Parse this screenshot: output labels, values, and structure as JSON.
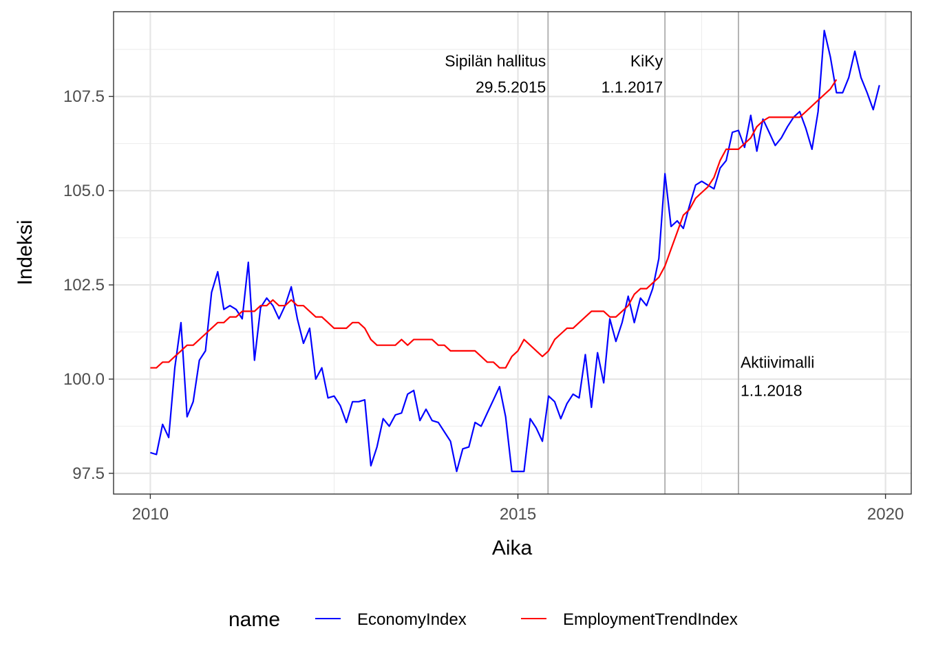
{
  "chart_data": {
    "type": "line",
    "xlabel": "Aika",
    "ylabel": "Indeksi",
    "xlim": [
      2009.5,
      2020.35
    ],
    "ylim": [
      96.95,
      109.75
    ],
    "xticks": [
      {
        "value": 2010,
        "label": "2010"
      },
      {
        "value": 2015,
        "label": "2015"
      },
      {
        "value": 2020,
        "label": "2020"
      }
    ],
    "yticks": [
      {
        "value": 97.5,
        "label": "97.5"
      },
      {
        "value": 100.0,
        "label": "100.0"
      },
      {
        "value": 102.5,
        "label": "102.5"
      },
      {
        "value": 105.0,
        "label": "105.0"
      },
      {
        "value": 107.5,
        "label": "107.5"
      }
    ],
    "grid": true,
    "legend_position": "bottom",
    "legend_title": "name",
    "vlines": [
      {
        "x": 2015.41,
        "label_line1": "Sipilän hallitus",
        "label_line2": "29.5.2015",
        "label_anchor": "end",
        "label_y1": 108.3,
        "label_y2": 107.6
      },
      {
        "x": 2017.0,
        "label_line1": "KiKy",
        "label_line2": "1.1.2017",
        "label_anchor": "end",
        "label_y1": 108.3,
        "label_y2": 107.6
      },
      {
        "x": 2018.0,
        "label_line1": "Aktiivimalli",
        "label_line2": "1.1.2018",
        "label_anchor": "start",
        "label_y1": 100.3,
        "label_y2": 99.55
      }
    ],
    "series": [
      {
        "name": "EconomyIndex",
        "color": "#0000ff",
        "x": [
          2010.0,
          2010.083,
          2010.167,
          2010.25,
          2010.333,
          2010.417,
          2010.5,
          2010.583,
          2010.667,
          2010.75,
          2010.833,
          2010.917,
          2011.0,
          2011.083,
          2011.167,
          2011.25,
          2011.333,
          2011.417,
          2011.5,
          2011.583,
          2011.667,
          2011.75,
          2011.833,
          2011.917,
          2012.0,
          2012.083,
          2012.167,
          2012.25,
          2012.333,
          2012.417,
          2012.5,
          2012.583,
          2012.667,
          2012.75,
          2012.833,
          2012.917,
          2013.0,
          2013.083,
          2013.167,
          2013.25,
          2013.333,
          2013.417,
          2013.5,
          2013.583,
          2013.667,
          2013.75,
          2013.833,
          2013.917,
          2014.0,
          2014.083,
          2014.167,
          2014.25,
          2014.333,
          2014.417,
          2014.5,
          2014.583,
          2014.667,
          2014.75,
          2014.833,
          2014.917,
          2015.0,
          2015.083,
          2015.167,
          2015.25,
          2015.333,
          2015.417,
          2015.5,
          2015.583,
          2015.667,
          2015.75,
          2015.833,
          2015.917,
          2016.0,
          2016.083,
          2016.167,
          2016.25,
          2016.333,
          2016.417,
          2016.5,
          2016.583,
          2016.667,
          2016.75,
          2016.833,
          2016.917,
          2017.0,
          2017.083,
          2017.167,
          2017.25,
          2017.333,
          2017.417,
          2017.5,
          2017.583,
          2017.667,
          2017.75,
          2017.833,
          2017.917,
          2018.0,
          2018.083,
          2018.167,
          2018.25,
          2018.333,
          2018.417,
          2018.5,
          2018.583,
          2018.667,
          2018.75,
          2018.833,
          2018.917,
          2019.0,
          2019.083,
          2019.167,
          2019.25,
          2019.333,
          2019.417,
          2019.5,
          2019.583,
          2019.667,
          2019.75,
          2019.833,
          2019.917
        ],
        "values": [
          98.05,
          98.0,
          98.8,
          98.45,
          100.3,
          101.5,
          99.0,
          99.4,
          100.5,
          100.75,
          102.3,
          102.85,
          101.85,
          101.95,
          101.85,
          101.6,
          103.1,
          100.5,
          101.9,
          102.15,
          101.95,
          101.6,
          101.95,
          102.45,
          101.6,
          100.95,
          101.35,
          100.0,
          100.3,
          99.5,
          99.55,
          99.3,
          98.85,
          99.4,
          99.4,
          99.45,
          97.7,
          98.2,
          98.95,
          98.75,
          99.05,
          99.1,
          99.6,
          99.7,
          98.9,
          99.2,
          98.9,
          98.85,
          98.6,
          98.35,
          97.55,
          98.15,
          98.2,
          98.85,
          98.75,
          99.1,
          99.45,
          99.8,
          99.0,
          97.55,
          97.55,
          97.55,
          98.95,
          98.7,
          98.35,
          99.55,
          99.4,
          98.95,
          99.35,
          99.6,
          99.5,
          100.65,
          99.25,
          100.7,
          99.9,
          101.6,
          101.0,
          101.5,
          102.2,
          101.5,
          102.15,
          101.95,
          102.4,
          103.2,
          105.45,
          104.05,
          104.2,
          104.0,
          104.6,
          105.15,
          105.25,
          105.15,
          105.05,
          105.6,
          105.8,
          106.55,
          106.6,
          106.15,
          107.0,
          106.05,
          106.9,
          106.55,
          106.2,
          106.4,
          106.7,
          106.95,
          107.1,
          106.65,
          106.1,
          107.1,
          109.25,
          108.55,
          107.6,
          107.6,
          108.0,
          108.7,
          108.0,
          107.6,
          107.15,
          107.8
        ]
      },
      {
        "name": "EmploymentTrendIndex",
        "color": "#ff0000",
        "x": [
          2010.0,
          2010.083,
          2010.167,
          2010.25,
          2010.333,
          2010.417,
          2010.5,
          2010.583,
          2010.667,
          2010.75,
          2010.833,
          2010.917,
          2011.0,
          2011.083,
          2011.167,
          2011.25,
          2011.333,
          2011.417,
          2011.5,
          2011.583,
          2011.667,
          2011.75,
          2011.833,
          2011.917,
          2012.0,
          2012.083,
          2012.167,
          2012.25,
          2012.333,
          2012.417,
          2012.5,
          2012.583,
          2012.667,
          2012.75,
          2012.833,
          2012.917,
          2013.0,
          2013.083,
          2013.167,
          2013.25,
          2013.333,
          2013.417,
          2013.5,
          2013.583,
          2013.667,
          2013.75,
          2013.833,
          2013.917,
          2014.0,
          2014.083,
          2014.167,
          2014.25,
          2014.333,
          2014.417,
          2014.5,
          2014.583,
          2014.667,
          2014.75,
          2014.833,
          2014.917,
          2015.0,
          2015.083,
          2015.167,
          2015.25,
          2015.333,
          2015.417,
          2015.5,
          2015.583,
          2015.667,
          2015.75,
          2015.833,
          2015.917,
          2016.0,
          2016.083,
          2016.167,
          2016.25,
          2016.333,
          2016.417,
          2016.5,
          2016.583,
          2016.667,
          2016.75,
          2016.833,
          2016.917,
          2017.0,
          2017.083,
          2017.167,
          2017.25,
          2017.333,
          2017.417,
          2017.5,
          2017.583,
          2017.667,
          2017.75,
          2017.833,
          2017.917,
          2018.0,
          2018.083,
          2018.167,
          2018.25,
          2018.333,
          2018.417,
          2018.5,
          2018.583,
          2018.667,
          2018.75,
          2018.833,
          2018.917,
          2019.0,
          2019.083,
          2019.167,
          2019.25,
          2019.333
        ],
        "values": [
          100.3,
          100.3,
          100.45,
          100.45,
          100.6,
          100.75,
          100.9,
          100.9,
          101.05,
          101.2,
          101.35,
          101.5,
          101.5,
          101.65,
          101.65,
          101.8,
          101.8,
          101.8,
          101.95,
          101.95,
          102.1,
          101.95,
          101.95,
          102.1,
          101.95,
          101.95,
          101.8,
          101.65,
          101.65,
          101.5,
          101.35,
          101.35,
          101.35,
          101.5,
          101.5,
          101.35,
          101.05,
          100.9,
          100.9,
          100.9,
          100.9,
          101.05,
          100.9,
          101.05,
          101.05,
          101.05,
          101.05,
          100.9,
          100.9,
          100.75,
          100.75,
          100.75,
          100.75,
          100.75,
          100.6,
          100.45,
          100.45,
          100.3,
          100.3,
          100.6,
          100.75,
          101.05,
          100.9,
          100.75,
          100.6,
          100.75,
          101.05,
          101.2,
          101.35,
          101.35,
          101.5,
          101.65,
          101.8,
          101.8,
          101.8,
          101.65,
          101.65,
          101.8,
          101.95,
          102.25,
          102.4,
          102.4,
          102.55,
          102.7,
          103.0,
          103.45,
          103.9,
          104.35,
          104.5,
          104.8,
          104.95,
          105.1,
          105.35,
          105.8,
          106.1,
          106.1,
          106.1,
          106.25,
          106.4,
          106.7,
          106.85,
          106.95,
          106.95,
          106.95,
          106.95,
          106.95,
          106.95,
          107.1,
          107.25,
          107.4,
          107.55,
          107.7,
          107.95
        ]
      }
    ]
  }
}
